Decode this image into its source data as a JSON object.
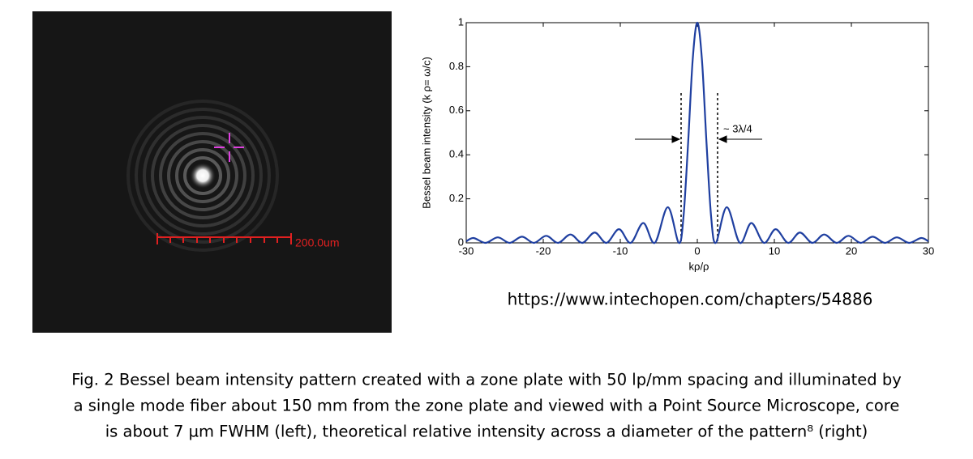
{
  "chart_data": {
    "type": "line",
    "ylabel": "Bessel beam intensity (k ρ= ω/c)",
    "xlabel": "kρ/ρ",
    "annotation": "~ 3λ/4",
    "x": [
      -30,
      -29.05,
      -27.49,
      -25.9,
      -24.35,
      -22.76,
      -21.21,
      -19.62,
      -18.07,
      -16.47,
      -14.93,
      -13.32,
      -11.79,
      -10.17,
      -8.654,
      -7.016,
      -5.52,
      -3.832,
      -2.405,
      -1.8,
      -1.2,
      -0.6,
      0,
      0.6,
      1.2,
      1.8,
      2.405,
      3.832,
      5.52,
      7.016,
      8.654,
      10.17,
      11.79,
      13.32,
      14.93,
      16.47,
      18.07,
      19.62,
      21.21,
      22.76,
      24.35,
      25.9,
      27.49,
      29.05,
      30
    ],
    "series": [
      {
        "color": "#1f3fa0",
        "values": [
          0.007,
          0.022,
          0,
          0.025,
          0,
          0.028,
          0,
          0.032,
          0,
          0.038,
          0,
          0.047,
          0,
          0.062,
          0,
          0.09,
          0,
          0.162,
          0,
          0.116,
          0.45,
          0.832,
          1,
          0.832,
          0.45,
          0.116,
          0,
          0.162,
          0,
          0.09,
          0,
          0.062,
          0,
          0.047,
          0,
          0.038,
          0,
          0.032,
          0,
          0.028,
          0,
          0.025,
          0,
          0.022,
          0.007
        ]
      }
    ],
    "xlim": [
      -30,
      30
    ],
    "xticks": [
      -30,
      -20,
      -10,
      0,
      10,
      20,
      30
    ],
    "ylim": [
      0,
      1
    ],
    "yticks": [
      0,
      0.2,
      0.4,
      0.6,
      0.8,
      1
    ],
    "grid": false
  },
  "image": {
    "scale_label": "200.0um"
  },
  "source_url": "https://www.intechopen.com/chapters/54886",
  "caption": [
    "Fig. 2 Bessel beam intensity pattern created with a zone plate with 50 lp/mm spacing and illuminated by",
    "a single mode fiber about 150 mm from the zone plate and viewed with a Point Source Microscope, core",
    "is about 7 µm FWHM (left), theoretical relative intensity across a diameter of the pattern⁸ (right)"
  ]
}
